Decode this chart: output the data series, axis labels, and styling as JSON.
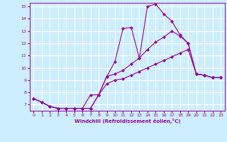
{
  "xlabel": "Windchill (Refroidissement éolien,°C)",
  "bg_color": "#cceeff",
  "line_color": "#990099",
  "grid_color": "#ffffff",
  "xmin": 0,
  "xmax": 23,
  "ymin": 7,
  "ymax": 15,
  "hours": [
    0,
    1,
    2,
    3,
    4,
    5,
    6,
    7,
    8,
    9,
    10,
    11,
    12,
    13,
    14,
    15,
    16,
    17,
    18,
    19,
    20,
    21,
    22,
    23
  ],
  "curve1": [
    7.5,
    7.2,
    6.85,
    6.7,
    6.7,
    6.7,
    6.7,
    6.7,
    7.8,
    9.3,
    10.5,
    13.2,
    13.3,
    10.8,
    15.0,
    15.2,
    14.4,
    13.8,
    12.7,
    12.0,
    9.5,
    9.4,
    9.2,
    9.2
  ],
  "curve2": [
    7.5,
    7.2,
    6.85,
    6.7,
    6.7,
    6.7,
    6.7,
    6.7,
    7.8,
    9.3,
    9.5,
    9.8,
    10.3,
    10.8,
    11.5,
    12.1,
    12.5,
    13.0,
    12.6,
    12.0,
    9.5,
    9.4,
    9.2,
    9.2
  ],
  "curve3": [
    7.5,
    7.2,
    6.85,
    6.7,
    6.7,
    6.7,
    6.7,
    7.8,
    7.8,
    8.7,
    9.0,
    9.1,
    9.4,
    9.7,
    10.0,
    10.3,
    10.6,
    10.9,
    11.2,
    11.5,
    9.5,
    9.4,
    9.2,
    9.2
  ]
}
